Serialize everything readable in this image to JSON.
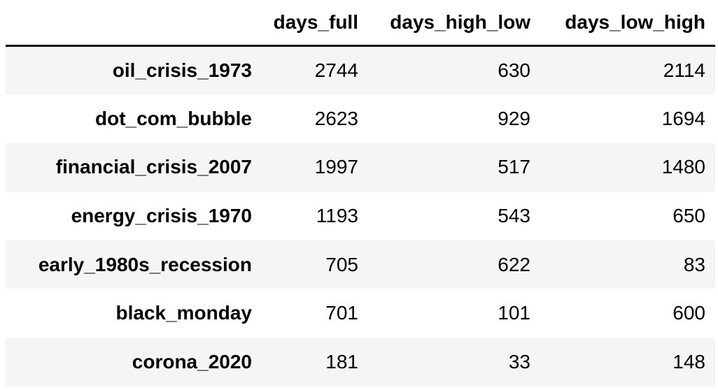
{
  "table": {
    "index_header": "",
    "columns": [
      "days_full",
      "days_high_low",
      "days_low_high"
    ],
    "rows": [
      {
        "index": "oil_crisis_1973",
        "values": [
          "2744",
          "630",
          "2114"
        ]
      },
      {
        "index": "dot_com_bubble",
        "values": [
          "2623",
          "929",
          "1694"
        ]
      },
      {
        "index": "financial_crisis_2007",
        "values": [
          "1997",
          "517",
          "1480"
        ]
      },
      {
        "index": "energy_crisis_1970",
        "values": [
          "1193",
          "543",
          "650"
        ]
      },
      {
        "index": "early_1980s_recession",
        "values": [
          "705",
          "622",
          "83"
        ]
      },
      {
        "index": "black_monday",
        "values": [
          "701",
          "101",
          "600"
        ]
      },
      {
        "index": "corona_2020",
        "values": [
          "181",
          "33",
          "148"
        ]
      }
    ]
  }
}
